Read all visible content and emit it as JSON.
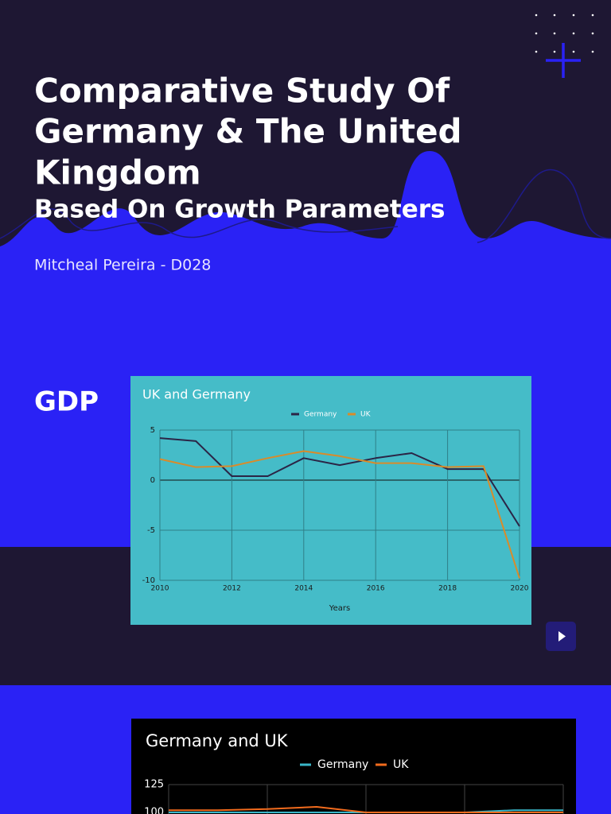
{
  "header": {
    "title_lines": [
      "Comparative Study Of",
      "Germany & The United",
      "Kingdom"
    ],
    "subtitle": "Based On Growth Parameters",
    "author": "Mitcheal Pereira - D028"
  },
  "section_label": "GDP",
  "chart_data": [
    {
      "type": "line",
      "title": "UK and Germany",
      "x_label": "Years",
      "x": [
        2010,
        2011,
        2012,
        2013,
        2014,
        2015,
        2016,
        2017,
        2018,
        2019,
        2020
      ],
      "xlim": [
        2010,
        2020
      ],
      "xticks": [
        2010,
        2012,
        2014,
        2016,
        2018,
        2020
      ],
      "ylim": [
        -10,
        5
      ],
      "yticks": [
        -10,
        -5,
        0,
        5
      ],
      "grid": true,
      "series": [
        {
          "name": "Germany",
          "color": "#2b2546",
          "values": [
            4.2,
            3.9,
            0.4,
            0.4,
            2.2,
            1.5,
            2.2,
            2.7,
            1.1,
            1.1,
            -4.6
          ]
        },
        {
          "name": "UK",
          "color": "#d98b2a",
          "values": [
            2.1,
            1.3,
            1.4,
            2.2,
            2.9,
            2.4,
            1.7,
            1.7,
            1.3,
            1.4,
            -9.8
          ]
        }
      ]
    },
    {
      "type": "line",
      "title": "Germany and UK",
      "categories": [
        null,
        null,
        null,
        null,
        null,
        null,
        null,
        null,
        null
      ],
      "ylim": [
        75,
        125
      ],
      "yticks": [
        100,
        125
      ],
      "grid": true,
      "series": [
        {
          "name": "Germany",
          "color": "#3ab7c9",
          "values": [
            100,
            100,
            100,
            100,
            100,
            100,
            100,
            102,
            102
          ]
        },
        {
          "name": "UK",
          "color": "#f26b1d",
          "values": [
            102,
            102,
            103,
            105,
            100,
            100,
            100,
            100,
            100
          ]
        }
      ]
    }
  ]
}
